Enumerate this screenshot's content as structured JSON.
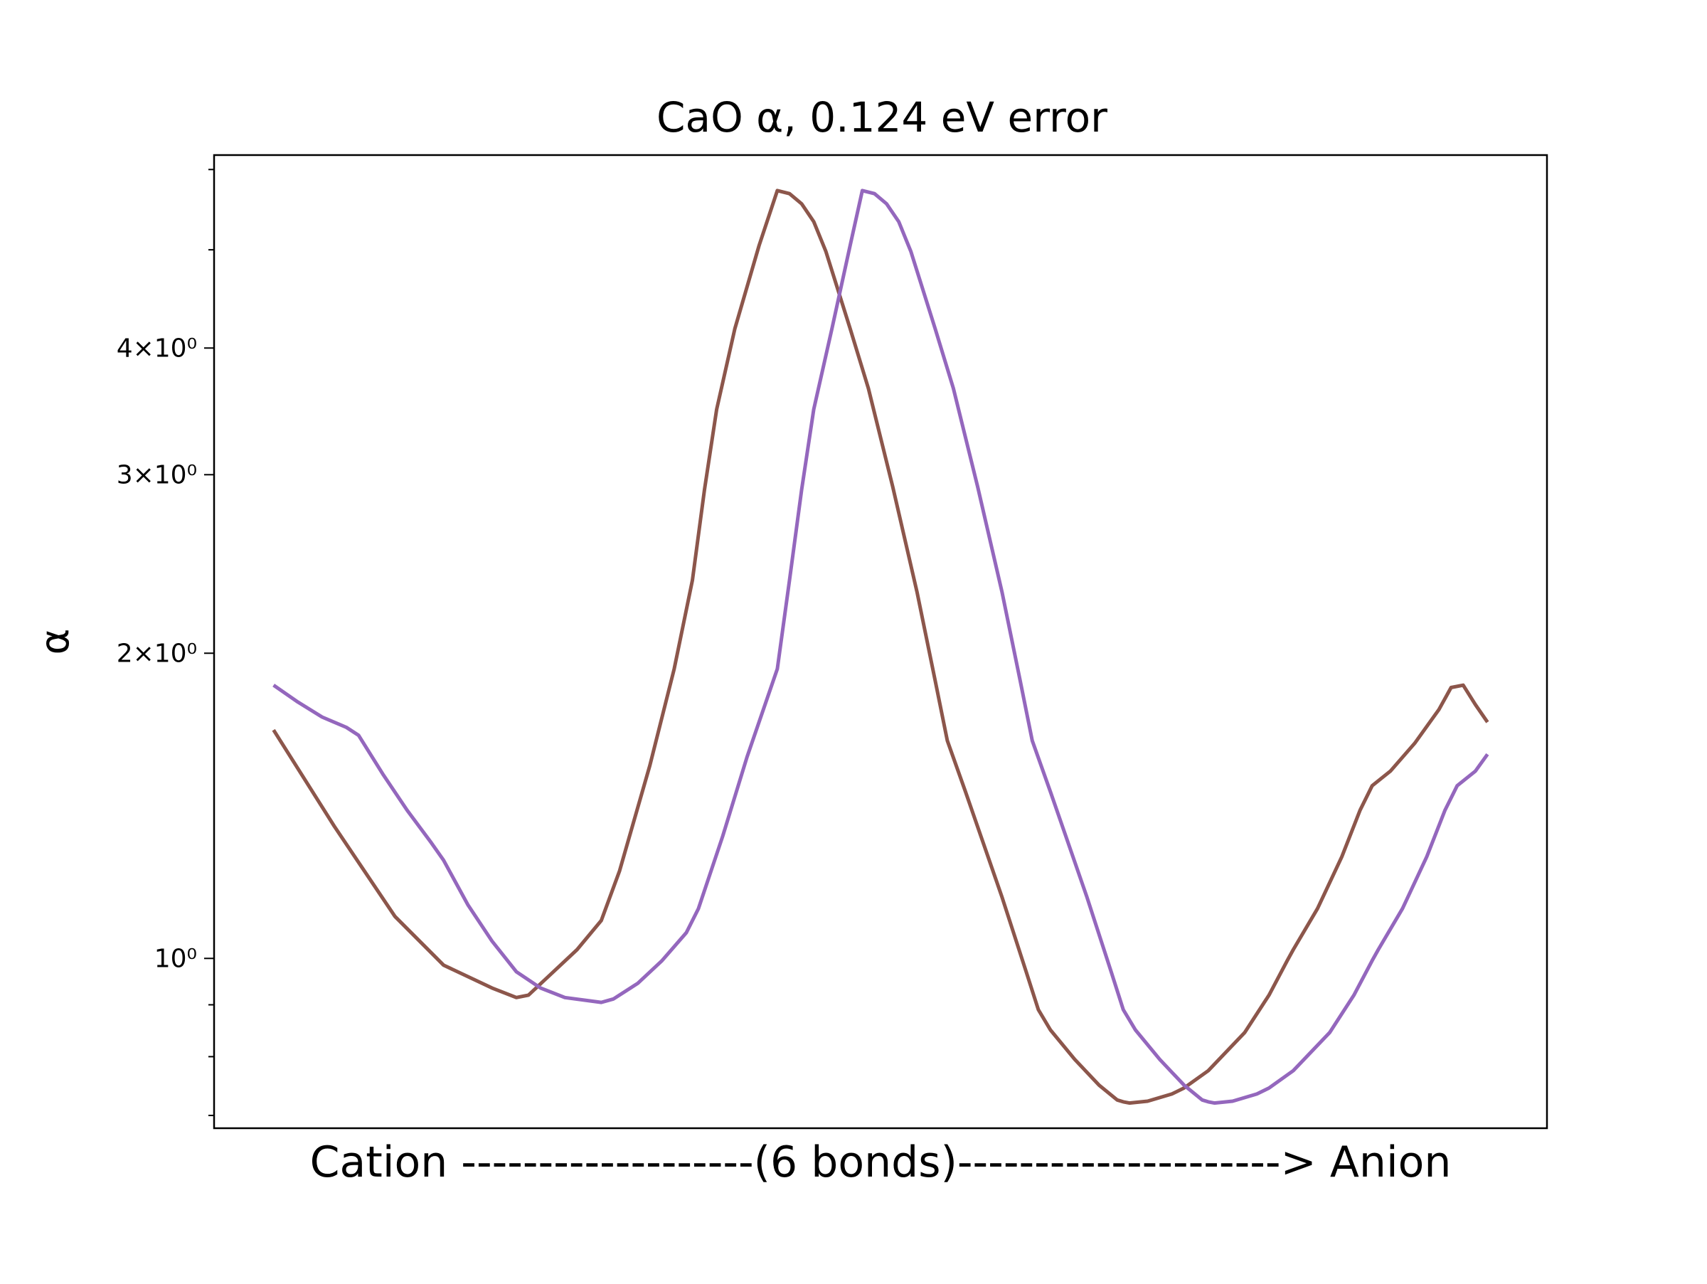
{
  "chart_data": {
    "type": "line",
    "title": "CaO α, 0.124 eV error",
    "xlabel": "Cation -------------------(6 bonds)---------------------> Anion",
    "ylabel": "α",
    "yscale": "log",
    "ylim": [
      0.68,
      6.2
    ],
    "xlim": [
      -0.049,
      1.049
    ],
    "grid": false,
    "legend": "none",
    "y_ticks": [
      {
        "value": 1,
        "label": "10⁰"
      },
      {
        "value": 2,
        "label": "2×10⁰"
      },
      {
        "value": 3,
        "label": "3×10⁰"
      },
      {
        "value": 4,
        "label": "4×10⁰"
      }
    ],
    "y_minor_ticks": [
      0.7,
      0.8,
      0.9,
      5,
      6
    ],
    "series": [
      {
        "color": "#8c564b",
        "points": [
          [
            0.0,
            1.68
          ],
          [
            0.05,
            1.35
          ],
          [
            0.1,
            1.1
          ],
          [
            0.14,
            0.985
          ],
          [
            0.18,
            0.935
          ],
          [
            0.2,
            0.915
          ],
          [
            0.21,
            0.92
          ],
          [
            0.25,
            1.02
          ],
          [
            0.27,
            1.09
          ],
          [
            0.285,
            1.22
          ],
          [
            0.31,
            1.55
          ],
          [
            0.33,
            1.93
          ],
          [
            0.345,
            2.36
          ],
          [
            0.355,
            2.9
          ],
          [
            0.365,
            3.48
          ],
          [
            0.38,
            4.18
          ],
          [
            0.4,
            5.05
          ],
          [
            0.415,
            5.72
          ],
          [
            0.425,
            5.68
          ],
          [
            0.435,
            5.55
          ],
          [
            0.445,
            5.33
          ],
          [
            0.455,
            4.98
          ],
          [
            0.475,
            4.18
          ],
          [
            0.49,
            3.65
          ],
          [
            0.51,
            2.92
          ],
          [
            0.53,
            2.3
          ],
          [
            0.545,
            1.88
          ],
          [
            0.555,
            1.64
          ],
          [
            0.57,
            1.46
          ],
          [
            0.6,
            1.15
          ],
          [
            0.62,
            0.97
          ],
          [
            0.63,
            0.89
          ],
          [
            0.64,
            0.85
          ],
          [
            0.66,
            0.795
          ],
          [
            0.68,
            0.75
          ],
          [
            0.695,
            0.725
          ],
          [
            0.7,
            0.722
          ],
          [
            0.705,
            0.72
          ],
          [
            0.72,
            0.723
          ],
          [
            0.74,
            0.735
          ],
          [
            0.75,
            0.745
          ],
          [
            0.77,
            0.775
          ],
          [
            0.8,
            0.845
          ],
          [
            0.82,
            0.92
          ],
          [
            0.835,
            0.995
          ],
          [
            0.84,
            1.02
          ],
          [
            0.86,
            1.12
          ],
          [
            0.88,
            1.26
          ],
          [
            0.895,
            1.4
          ],
          [
            0.905,
            1.48
          ],
          [
            0.92,
            1.53
          ],
          [
            0.94,
            1.63
          ],
          [
            0.96,
            1.76
          ],
          [
            0.97,
            1.85
          ],
          [
            0.98,
            1.86
          ],
          [
            0.99,
            1.78
          ],
          [
            1.0,
            1.71
          ]
        ]
      },
      {
        "color": "#9467bd",
        "points": [
          [
            0.0,
            1.86
          ],
          [
            0.02,
            1.79
          ],
          [
            0.04,
            1.73
          ],
          [
            0.06,
            1.69
          ],
          [
            0.07,
            1.66
          ],
          [
            0.09,
            1.52
          ],
          [
            0.11,
            1.4
          ],
          [
            0.13,
            1.3
          ],
          [
            0.14,
            1.25
          ],
          [
            0.16,
            1.13
          ],
          [
            0.18,
            1.04
          ],
          [
            0.2,
            0.97
          ],
          [
            0.22,
            0.935
          ],
          [
            0.24,
            0.915
          ],
          [
            0.27,
            0.905
          ],
          [
            0.28,
            0.912
          ],
          [
            0.3,
            0.945
          ],
          [
            0.32,
            0.995
          ],
          [
            0.34,
            1.06
          ],
          [
            0.35,
            1.12
          ],
          [
            0.37,
            1.32
          ],
          [
            0.39,
            1.58
          ],
          [
            0.415,
            1.93
          ],
          [
            0.425,
            2.36
          ],
          [
            0.435,
            2.9
          ],
          [
            0.445,
            3.48
          ],
          [
            0.46,
            4.18
          ],
          [
            0.475,
            5.05
          ],
          [
            0.485,
            5.72
          ],
          [
            0.495,
            5.68
          ],
          [
            0.505,
            5.55
          ],
          [
            0.515,
            5.33
          ],
          [
            0.525,
            4.98
          ],
          [
            0.545,
            4.18
          ],
          [
            0.56,
            3.65
          ],
          [
            0.58,
            2.92
          ],
          [
            0.6,
            2.3
          ],
          [
            0.615,
            1.88
          ],
          [
            0.625,
            1.64
          ],
          [
            0.64,
            1.46
          ],
          [
            0.67,
            1.15
          ],
          [
            0.69,
            0.97
          ],
          [
            0.7,
            0.89
          ],
          [
            0.71,
            0.85
          ],
          [
            0.73,
            0.795
          ],
          [
            0.75,
            0.75
          ],
          [
            0.765,
            0.725
          ],
          [
            0.77,
            0.722
          ],
          [
            0.775,
            0.72
          ],
          [
            0.79,
            0.723
          ],
          [
            0.81,
            0.735
          ],
          [
            0.82,
            0.745
          ],
          [
            0.84,
            0.775
          ],
          [
            0.87,
            0.845
          ],
          [
            0.89,
            0.92
          ],
          [
            0.905,
            0.995
          ],
          [
            0.91,
            1.02
          ],
          [
            0.93,
            1.12
          ],
          [
            0.95,
            1.26
          ],
          [
            0.965,
            1.4
          ],
          [
            0.975,
            1.48
          ],
          [
            0.99,
            1.53
          ],
          [
            1.0,
            1.59
          ]
        ]
      }
    ]
  }
}
